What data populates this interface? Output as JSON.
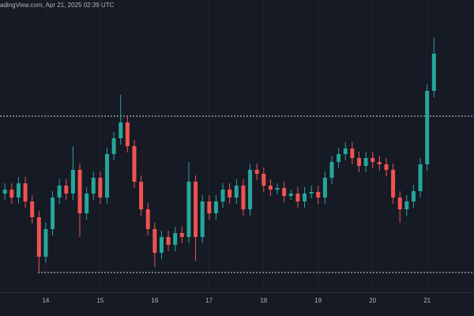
{
  "chart_data": {
    "type": "candlestick",
    "source": "adingView.com, Apr 21, 2025 02:39 UTC",
    "up_color": "#26a69a",
    "down_color": "#ef5350",
    "grid": true,
    "x": [
      13.25,
      13.375,
      13.5,
      13.625,
      13.75,
      13.875,
      14,
      14.125,
      14.25,
      14.375,
      14.5,
      14.625,
      14.75,
      14.875,
      15,
      15.125,
      15.25,
      15.375,
      15.5,
      15.625,
      15.75,
      15.875,
      16,
      16.125,
      16.25,
      16.375,
      16.5,
      16.625,
      16.75,
      16.875,
      17,
      17.125,
      17.25,
      17.375,
      17.5,
      17.625,
      17.75,
      17.875,
      18,
      18.125,
      18.25,
      18.375,
      18.5,
      18.625,
      18.75,
      18.875,
      19,
      19.125,
      19.25,
      19.375,
      19.5,
      19.625,
      19.75,
      19.875,
      20,
      20.125,
      20.25,
      20.375,
      20.5,
      20.625,
      20.75,
      20.875,
      21,
      21.125
    ],
    "open": [
      84575,
      84650,
      84500,
      84770,
      84425,
      84125,
      83375,
      83900,
      84500,
      84725,
      84575,
      85025,
      84200,
      84575,
      84875,
      84500,
      85325,
      85625,
      85925,
      85475,
      84800,
      84275,
      83900,
      83450,
      83750,
      83600,
      83825,
      83750,
      84800,
      83750,
      84425,
      84200,
      84425,
      84650,
      84500,
      84725,
      84275,
      85025,
      84950,
      84725,
      84650,
      84680,
      84530,
      84575,
      84425,
      84575,
      84605,
      84500,
      84875,
      85175,
      85325,
      85430,
      85250,
      85100,
      85250,
      85175,
      85130,
      85025,
      84500,
      84275,
      84425,
      84620,
      85130,
      86525
    ],
    "high": [
      84770,
      84770,
      84890,
      84890,
      84545,
      84245,
      84020,
      84620,
      84845,
      84845,
      85475,
      85145,
      84695,
      84995,
      84995,
      85445,
      85745,
      86450,
      86045,
      85595,
      84920,
      84395,
      84020,
      83870,
      83870,
      83945,
      83945,
      85175,
      84920,
      84545,
      84545,
      84545,
      84770,
      84770,
      84845,
      84845,
      85145,
      85145,
      85070,
      84845,
      84770,
      84800,
      84650,
      84695,
      84695,
      84725,
      84725,
      84995,
      85295,
      85445,
      85550,
      85550,
      85370,
      85370,
      85370,
      85295,
      85250,
      85145,
      84620,
      84545,
      84740,
      85250,
      86645,
      87530
    ],
    "low": [
      84455,
      84380,
      84380,
      84305,
      84005,
      83075,
      83255,
      83780,
      84380,
      84455,
      84455,
      83750,
      84080,
      84455,
      84380,
      84380,
      85205,
      85505,
      85355,
      84680,
      84155,
      83780,
      83180,
      83330,
      83480,
      83480,
      83630,
      83630,
      83300,
      83630,
      84080,
      84080,
      84305,
      84380,
      84380,
      84155,
      84155,
      84830,
      84605,
      84530,
      84560,
      84410,
      84455,
      84305,
      84305,
      84485,
      84380,
      84380,
      84755,
      85055,
      85205,
      85130,
      84980,
      84980,
      85055,
      85010,
      84905,
      84380,
      84020,
      84155,
      84305,
      84500,
      85010,
      86405
    ],
    "close": [
      84650,
      84500,
      84770,
      84425,
      84125,
      83375,
      83900,
      84500,
      84725,
      84575,
      85025,
      84200,
      84575,
      84875,
      84500,
      85325,
      85625,
      85925,
      85475,
      84800,
      84275,
      83900,
      83450,
      83750,
      83600,
      83825,
      83750,
      84800,
      83750,
      84425,
      84200,
      84425,
      84650,
      84500,
      84725,
      84275,
      85025,
      84950,
      84725,
      84650,
      84680,
      84530,
      84575,
      84425,
      84575,
      84605,
      84500,
      84875,
      85175,
      85325,
      85430,
      85250,
      85100,
      85250,
      85175,
      85130,
      85025,
      84500,
      84275,
      84425,
      84620,
      85130,
      86525,
      87230
    ],
    "levels": [
      86045,
      83075
    ],
    "xlim": [
      13.16,
      21.86
    ],
    "xticks": [
      14,
      15,
      16,
      17,
      18,
      19,
      20,
      21
    ],
    "ylim": [
      82700,
      88250
    ]
  }
}
